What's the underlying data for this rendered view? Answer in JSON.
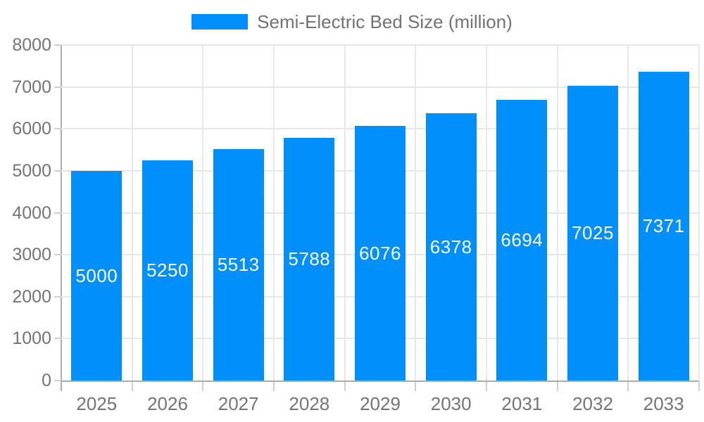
{
  "chart_data": {
    "type": "bar",
    "title": "Semi-Electric Bed Size (million)",
    "categories": [
      "2025",
      "2026",
      "2027",
      "2028",
      "2029",
      "2030",
      "2031",
      "2032",
      "2033"
    ],
    "series": [
      {
        "name": "Semi-Electric Bed Size (million)",
        "values": [
          5000,
          5250,
          5513,
          5788,
          6076,
          6378,
          6694,
          7025,
          7371
        ]
      }
    ],
    "xlabel": "",
    "ylabel": "",
    "ylim": [
      0,
      8000
    ],
    "ytick_step": 1000,
    "yticks": [
      0,
      1000,
      2000,
      3000,
      4000,
      5000,
      6000,
      7000,
      8000
    ],
    "grid": true,
    "legend_position": "top-center",
    "value_labels": "inside-center",
    "colors": {
      "bar": "#008FFB",
      "grid": "#e7e7e7",
      "axis": "#adadad",
      "tick": "#cfcfcf",
      "axis_label": "#757575",
      "legend_text": "#737373",
      "value_label": "#ffffff",
      "background": "#ffffff"
    }
  }
}
